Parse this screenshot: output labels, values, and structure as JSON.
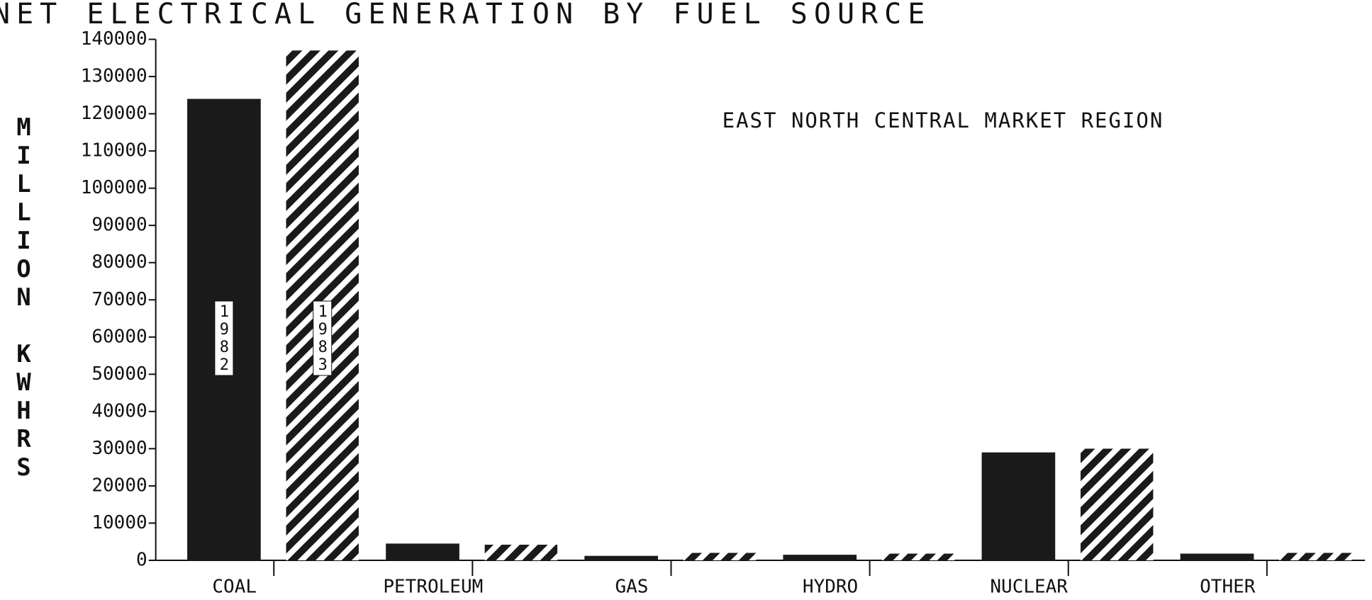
{
  "chart_data": {
    "type": "bar",
    "title": "NET ELECTRICAL GENERATION BY FUEL SOURCE",
    "subtitle": "EAST NORTH CENTRAL MARKET REGION",
    "y_label": "MILLION KWHRS",
    "categories": [
      "COAL",
      "PETROLEUM",
      "GAS",
      "HYDRO",
      "NUCLEAR",
      "OTHER"
    ],
    "series": [
      {
        "name": "1982",
        "color": "#1a1a1a",
        "fill_style": "solid",
        "values": [
          124000,
          4500,
          1200,
          1500,
          29000,
          1800
        ]
      },
      {
        "name": "1983",
        "color": "#1a1a1a",
        "fill_style": "hatch",
        "values": [
          137000,
          4200,
          2000,
          1800,
          30000,
          2000
        ]
      }
    ],
    "ylim": [
      0,
      140000
    ],
    "yticks": [
      0,
      10000,
      20000,
      30000,
      40000,
      50000,
      60000,
      70000,
      80000,
      90000,
      100000,
      110000,
      120000,
      130000,
      140000
    ]
  }
}
